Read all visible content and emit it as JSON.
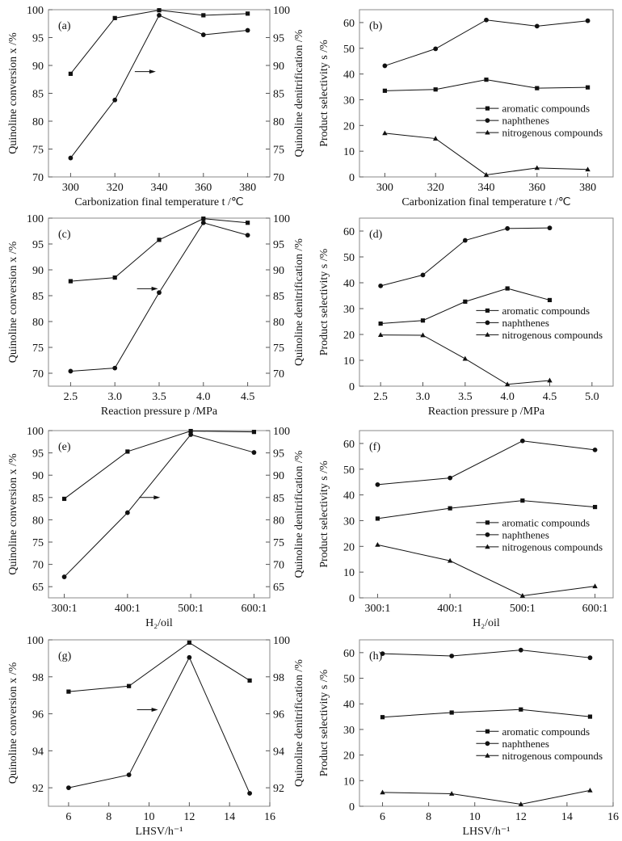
{
  "figure": {
    "legend_labels": [
      "aromatic compounds",
      "naphthenes",
      "nitrogenous compounds"
    ],
    "arrow_hint": "circles read on right axis",
    "colors": {
      "line": "#111111",
      "frame": "#8a8a8a",
      "background": "#ffffff"
    }
  },
  "chart_data": [
    {
      "panel": "(a)",
      "type": "line",
      "title": "",
      "xlabel": "Carbonization final temperature    t /℃",
      "ylabel": "Quinoline conversion    x /%",
      "y2label": "Quinoline denitrification /%",
      "x": [
        300,
        320,
        340,
        360,
        380
      ],
      "xlim": [
        290,
        390
      ],
      "xticks": [
        300,
        320,
        340,
        360,
        380
      ],
      "xtick_labels": [
        "300",
        "320",
        "340",
        "360",
        "380"
      ],
      "ylim": [
        70,
        100
      ],
      "yticks": [
        70,
        75,
        80,
        85,
        90,
        95,
        100
      ],
      "y2lim": [
        70,
        100
      ],
      "y2ticks": [
        70,
        75,
        80,
        85,
        90,
        95,
        100
      ],
      "series": [
        {
          "name": "Quinoline conversion",
          "marker": "square",
          "axis": "left",
          "values": [
            88.5,
            98.5,
            99.9,
            99.0,
            99.3
          ]
        },
        {
          "name": "Quinoline denitrification",
          "marker": "circle",
          "axis": "right",
          "values": [
            73.4,
            83.8,
            99.0,
            95.5,
            96.3
          ]
        }
      ],
      "annotations": [
        "(a)",
        "→"
      ],
      "grid": false
    },
    {
      "panel": "(b)",
      "type": "line",
      "title": "",
      "xlabel": "Carbonization final temperature    t /℃",
      "ylabel": "Product selectivity    s /%",
      "x": [
        300,
        320,
        340,
        360,
        380
      ],
      "xlim": [
        290,
        390
      ],
      "xticks": [
        300,
        320,
        340,
        360,
        380
      ],
      "xtick_labels": [
        "300",
        "320",
        "340",
        "360",
        "380"
      ],
      "ylim": [
        0,
        65
      ],
      "yticks": [
        0,
        10,
        20,
        30,
        40,
        50,
        60
      ],
      "series": [
        {
          "name": "aromatic compounds",
          "marker": "square",
          "values": [
            33.5,
            34.0,
            37.8,
            34.5,
            34.8
          ]
        },
        {
          "name": "naphthenes",
          "marker": "circle",
          "values": [
            43.2,
            49.8,
            61.0,
            58.6,
            60.7
          ]
        },
        {
          "name": "nitrogenous compounds",
          "marker": "triangle",
          "values": [
            17.0,
            14.9,
            0.8,
            3.5,
            2.9
          ]
        }
      ],
      "legend": "center-right",
      "annotations": [
        "(b)"
      ],
      "grid": false
    },
    {
      "panel": "(c)",
      "type": "line",
      "title": "",
      "xlabel": "Reaction  pressure    p /MPa",
      "ylabel": "Quinoline conversion    x /%",
      "y2label": "Quinoline denitrification /%",
      "x": [
        2.5,
        3.0,
        3.5,
        4.0,
        4.5
      ],
      "xlim": [
        2.25,
        4.75
      ],
      "xticks": [
        2.5,
        3.0,
        3.5,
        4.0,
        4.5
      ],
      "xtick_labels": [
        "2.5",
        "3.0",
        "3.5",
        "4.0",
        "4.5"
      ],
      "ylim": [
        67.5,
        100
      ],
      "yticks": [
        70,
        75,
        80,
        85,
        90,
        95,
        100
      ],
      "y2lim": [
        67.5,
        100
      ],
      "y2ticks": [
        70,
        75,
        80,
        85,
        90,
        95,
        100
      ],
      "series": [
        {
          "name": "Quinoline conversion",
          "marker": "square",
          "axis": "left",
          "values": [
            87.8,
            88.5,
            95.8,
            99.9,
            99.1
          ]
        },
        {
          "name": "Quinoline denitrification",
          "marker": "circle",
          "axis": "right",
          "values": [
            70.4,
            71.0,
            85.6,
            99.1,
            96.7
          ]
        }
      ],
      "annotations": [
        "(c)",
        "→"
      ],
      "grid": false
    },
    {
      "panel": "(d)",
      "type": "line",
      "title": "",
      "xlabel": "Reaction  pressure    p /MPa",
      "ylabel": "Product selectivity    s /%",
      "x": [
        2.5,
        3.0,
        3.5,
        4.0,
        4.5
      ],
      "xlim": [
        2.25,
        5.25
      ],
      "xticks": [
        2.5,
        3.0,
        3.5,
        4.0,
        4.5,
        5.0
      ],
      "xtick_labels": [
        "2.5",
        "3.0",
        "3.5",
        "4.0",
        "4.5",
        "5.0"
      ],
      "ylim": [
        0,
        65
      ],
      "yticks": [
        0,
        10,
        20,
        30,
        40,
        50,
        60
      ],
      "series": [
        {
          "name": "aromatic compounds",
          "marker": "square",
          "values": [
            24.2,
            25.4,
            32.7,
            37.8,
            33.3
          ]
        },
        {
          "name": "naphthenes",
          "marker": "circle",
          "values": [
            38.8,
            43.0,
            56.4,
            61.0,
            61.2
          ]
        },
        {
          "name": "nitrogenous compounds",
          "marker": "triangle",
          "values": [
            19.8,
            19.7,
            10.6,
            0.7,
            2.2
          ]
        }
      ],
      "legend": "center-right",
      "annotations": [
        "(d)"
      ],
      "grid": false
    },
    {
      "panel": "(e)",
      "type": "line",
      "title": "",
      "xlabel": "H₂/oil",
      "ylabel": "Quinoline conversion    x /%",
      "y2label": "Quinoline denitrification /%",
      "x": [
        "300:1",
        "400:1",
        "500:1",
        "600:1"
      ],
      "xlim": [
        0.75,
        4.25
      ],
      "xticks": [
        1,
        2,
        3,
        4
      ],
      "xtick_labels": [
        "300:1",
        "400:1",
        "500:1",
        "600:1"
      ],
      "ylim": [
        62.5,
        100
      ],
      "yticks": [
        65,
        70,
        75,
        80,
        85,
        90,
        95,
        100
      ],
      "y2lim": [
        62.5,
        100
      ],
      "y2ticks": [
        65,
        70,
        75,
        80,
        85,
        90,
        95,
        100
      ],
      "series": [
        {
          "name": "Quinoline conversion",
          "marker": "square",
          "axis": "left",
          "values": [
            84.7,
            95.3,
            99.9,
            99.7
          ]
        },
        {
          "name": "Quinoline denitrification",
          "marker": "circle",
          "axis": "right",
          "values": [
            67.2,
            81.6,
            99.1,
            95.1
          ]
        }
      ],
      "annotations": [
        "(e)",
        "→"
      ],
      "grid": false
    },
    {
      "panel": "(f)",
      "type": "line",
      "title": "",
      "xlabel": "H₂/oil",
      "ylabel": "Product selectivity    s /%",
      "x": [
        "300:1",
        "400:1",
        "500:1",
        "600:1"
      ],
      "xlim": [
        0.75,
        4.25
      ],
      "xticks": [
        1,
        2,
        3,
        4
      ],
      "xtick_labels": [
        "300:1",
        "400:1",
        "500:1",
        "600:1"
      ],
      "ylim": [
        0,
        65
      ],
      "yticks": [
        0,
        10,
        20,
        30,
        40,
        50,
        60
      ],
      "series": [
        {
          "name": "aromatic compounds",
          "marker": "square",
          "values": [
            30.8,
            34.8,
            37.8,
            35.3
          ]
        },
        {
          "name": "naphthenes",
          "marker": "circle",
          "values": [
            44.0,
            46.6,
            61.0,
            57.5
          ]
        },
        {
          "name": "nitrogenous compounds",
          "marker": "triangle",
          "values": [
            20.6,
            14.4,
            0.8,
            4.5
          ]
        }
      ],
      "legend": "center-right",
      "annotations": [
        "(f)"
      ],
      "grid": false
    },
    {
      "panel": "(g)",
      "type": "line",
      "title": "",
      "xlabel": "LHSV/h⁻¹",
      "ylabel": "Quinoline conversion    x /%",
      "y2label": "Quinoline denitrification /%",
      "x": [
        6,
        9,
        12,
        15
      ],
      "xlim": [
        5,
        16
      ],
      "xticks": [
        6,
        8,
        10,
        12,
        14,
        16
      ],
      "xtick_labels": [
        "6",
        "8",
        "10",
        "12",
        "14",
        "16"
      ],
      "ylim": [
        91,
        100
      ],
      "yticks": [
        92,
        94,
        96,
        98,
        100
      ],
      "y2lim": [
        91,
        100
      ],
      "y2ticks": [
        92,
        94,
        96,
        98,
        100
      ],
      "series": [
        {
          "name": "Quinoline conversion",
          "marker": "square",
          "axis": "left",
          "values": [
            97.2,
            97.5,
            99.85,
            97.8
          ]
        },
        {
          "name": "Quinoline denitrification",
          "marker": "circle",
          "axis": "right",
          "values": [
            92.0,
            92.7,
            99.05,
            91.7
          ]
        }
      ],
      "annotations": [
        "(g)",
        "→"
      ],
      "grid": false
    },
    {
      "panel": "(h)",
      "type": "line",
      "title": "",
      "xlabel": "LHSV/h⁻¹",
      "ylabel": "Product selectivity    s /%",
      "x": [
        6,
        9,
        12,
        15
      ],
      "xlim": [
        5,
        16
      ],
      "xticks": [
        6,
        8,
        10,
        12,
        14,
        16
      ],
      "xtick_labels": [
        "6",
        "8",
        "10",
        "12",
        "14",
        "16"
      ],
      "ylim": [
        0,
        65
      ],
      "yticks": [
        0,
        10,
        20,
        30,
        40,
        50,
        60
      ],
      "series": [
        {
          "name": "aromatic compounds",
          "marker": "square",
          "values": [
            34.8,
            36.6,
            37.8,
            35.0
          ]
        },
        {
          "name": "naphthenes",
          "marker": "circle",
          "values": [
            59.6,
            58.7,
            61.0,
            58.0
          ]
        },
        {
          "name": "nitrogenous compounds",
          "marker": "triangle",
          "values": [
            5.4,
            4.9,
            0.8,
            6.2
          ]
        }
      ],
      "legend": "center-right",
      "annotations": [
        "(h)"
      ],
      "grid": false
    }
  ]
}
